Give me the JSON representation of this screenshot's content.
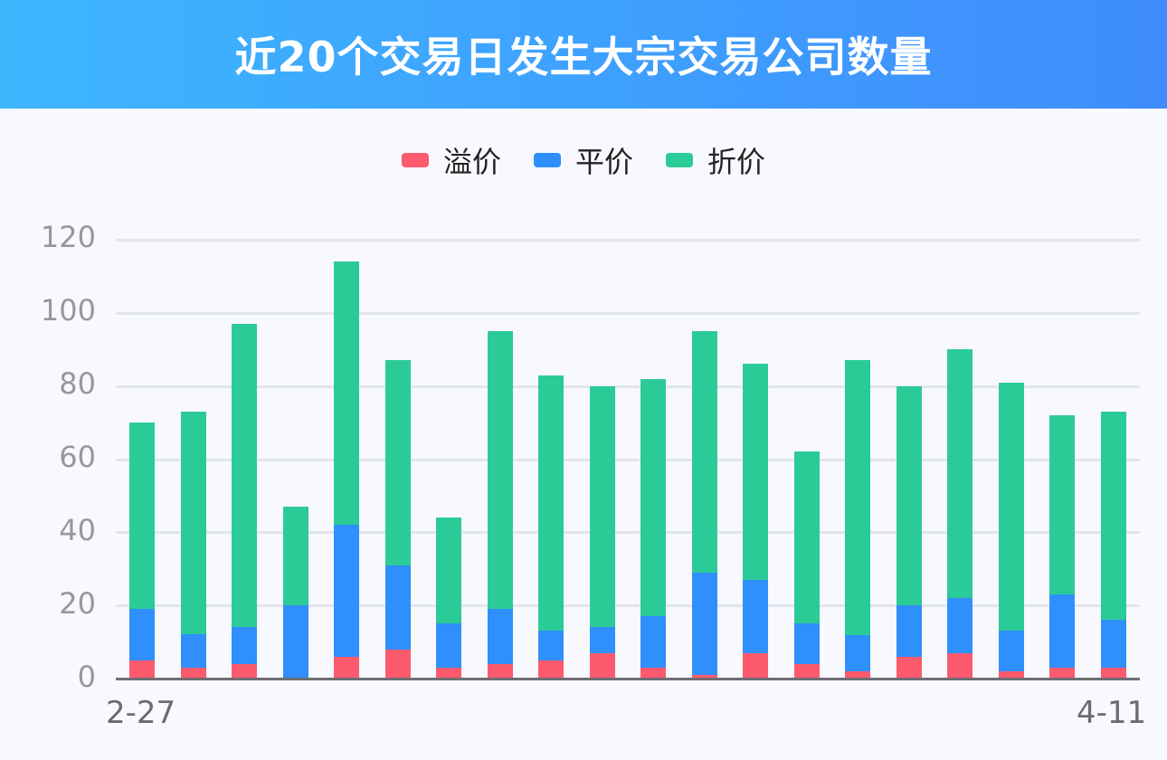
{
  "header": {
    "title": "近20个交易日发生大宗交易公司数量"
  },
  "legend": [
    {
      "label": "溢价",
      "color": "#fd5a6e"
    },
    {
      "label": "平价",
      "color": "#2f8ffd"
    },
    {
      "label": "折价",
      "color": "#2bcb98"
    }
  ],
  "chart_data": {
    "type": "bar",
    "stacked": true,
    "title": "近20个交易日发生大宗交易公司数量",
    "xlabel": "",
    "ylabel": "",
    "ylim": [
      0,
      120
    ],
    "yticks": [
      0,
      20,
      40,
      60,
      80,
      100,
      120
    ],
    "x_tick_labels": [
      "2-27",
      "4-11"
    ],
    "grid": true,
    "legend_position": "top",
    "categories": [
      "1",
      "2",
      "3",
      "4",
      "5",
      "6",
      "7",
      "8",
      "9",
      "10",
      "11",
      "12",
      "13",
      "14",
      "15",
      "16",
      "17",
      "18",
      "19",
      "20"
    ],
    "series": [
      {
        "name": "溢价",
        "color": "#fd5a6e",
        "values": [
          5,
          3,
          4,
          0,
          6,
          8,
          3,
          4,
          5,
          7,
          3,
          1,
          7,
          4,
          2,
          6,
          7,
          2,
          3,
          3
        ]
      },
      {
        "name": "平价",
        "color": "#2f8ffd",
        "values": [
          14,
          9,
          10,
          20,
          36,
          23,
          12,
          15,
          8,
          7,
          14,
          28,
          20,
          11,
          10,
          14,
          15,
          11,
          20,
          13
        ]
      },
      {
        "name": "折价",
        "color": "#2bcb98",
        "values": [
          51,
          61,
          83,
          27,
          72,
          56,
          29,
          76,
          70,
          66,
          65,
          66,
          59,
          47,
          75,
          60,
          68,
          68,
          49,
          57
        ]
      }
    ],
    "totals": [
      70,
      73,
      97,
      47,
      114,
      87,
      44,
      95,
      83,
      80,
      82,
      95,
      86,
      62,
      87,
      80,
      90,
      81,
      72,
      73
    ]
  }
}
